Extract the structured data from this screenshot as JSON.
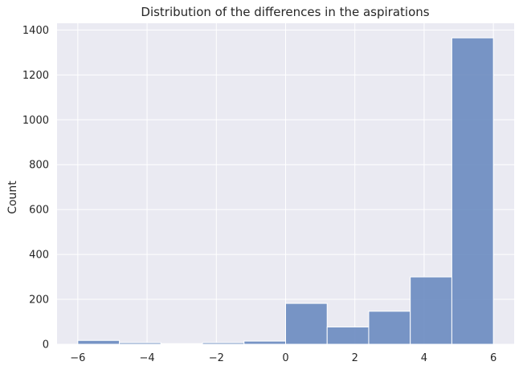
{
  "chart_data": {
    "type": "histogram",
    "title": "Distribution of the differences in the aspirations",
    "xlabel": "",
    "ylabel": "Count",
    "xlim": [
      -6.6,
      6.6
    ],
    "ylim": [
      0,
      1430
    ],
    "xticks": [
      -6,
      -4,
      -2,
      0,
      2,
      4,
      6
    ],
    "yticks": [
      0,
      200,
      400,
      600,
      800,
      1000,
      1200,
      1400
    ],
    "grid": true,
    "bar_color": "#6a8bc0",
    "background_color": "#eaeaf2",
    "bins": [
      {
        "x0": -6.0,
        "x1": -4.8,
        "count": 17
      },
      {
        "x0": -4.8,
        "x1": -3.6,
        "count": 7
      },
      {
        "x0": -3.6,
        "x1": -2.4,
        "count": 3
      },
      {
        "x0": -2.4,
        "x1": -1.2,
        "count": 7
      },
      {
        "x0": -1.2,
        "x1": 0.0,
        "count": 14
      },
      {
        "x0": 0.0,
        "x1": 1.2,
        "count": 182
      },
      {
        "x0": 1.2,
        "x1": 2.4,
        "count": 77
      },
      {
        "x0": 2.4,
        "x1": 3.6,
        "count": 147
      },
      {
        "x0": 3.6,
        "x1": 4.8,
        "count": 300
      },
      {
        "x0": 4.8,
        "x1": 6.0,
        "count": 1365
      }
    ]
  }
}
